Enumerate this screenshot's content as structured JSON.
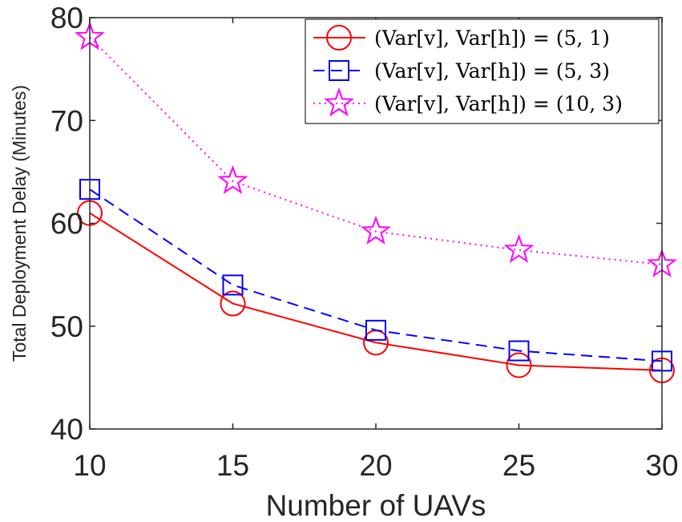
{
  "chart_data": {
    "type": "line",
    "title": "",
    "xlabel": "Number of UAVs",
    "ylabel": "Total Deployment Delay (Minutes)",
    "x": [
      10,
      15,
      20,
      25,
      30
    ],
    "xticks": [
      "10",
      "15",
      "20",
      "25",
      "30"
    ],
    "yticks": [
      "40",
      "50",
      "60",
      "70",
      "80"
    ],
    "xlim": [
      10,
      30
    ],
    "ylim": [
      40,
      80
    ],
    "grid": false,
    "legend_position": "top-right",
    "series": [
      {
        "name": "(Var[v], Var[h]) = (5, 1)",
        "values": [
          61.0,
          52.2,
          48.4,
          46.2,
          45.7
        ],
        "color": "#ff0000",
        "line_style": "solid",
        "marker": "circle"
      },
      {
        "name": "(Var[v], Var[h]) = (5, 3)",
        "values": [
          63.3,
          54.0,
          49.6,
          47.6,
          46.6
        ],
        "color": "#0000ff",
        "line_style": "dashed",
        "marker": "square"
      },
      {
        "name": "(Var[v], Var[h]) = (10, 3)",
        "values": [
          78.1,
          64.1,
          59.2,
          57.4,
          56.0
        ],
        "color": "#ff00ff",
        "line_style": "dotted",
        "marker": "star"
      }
    ]
  }
}
